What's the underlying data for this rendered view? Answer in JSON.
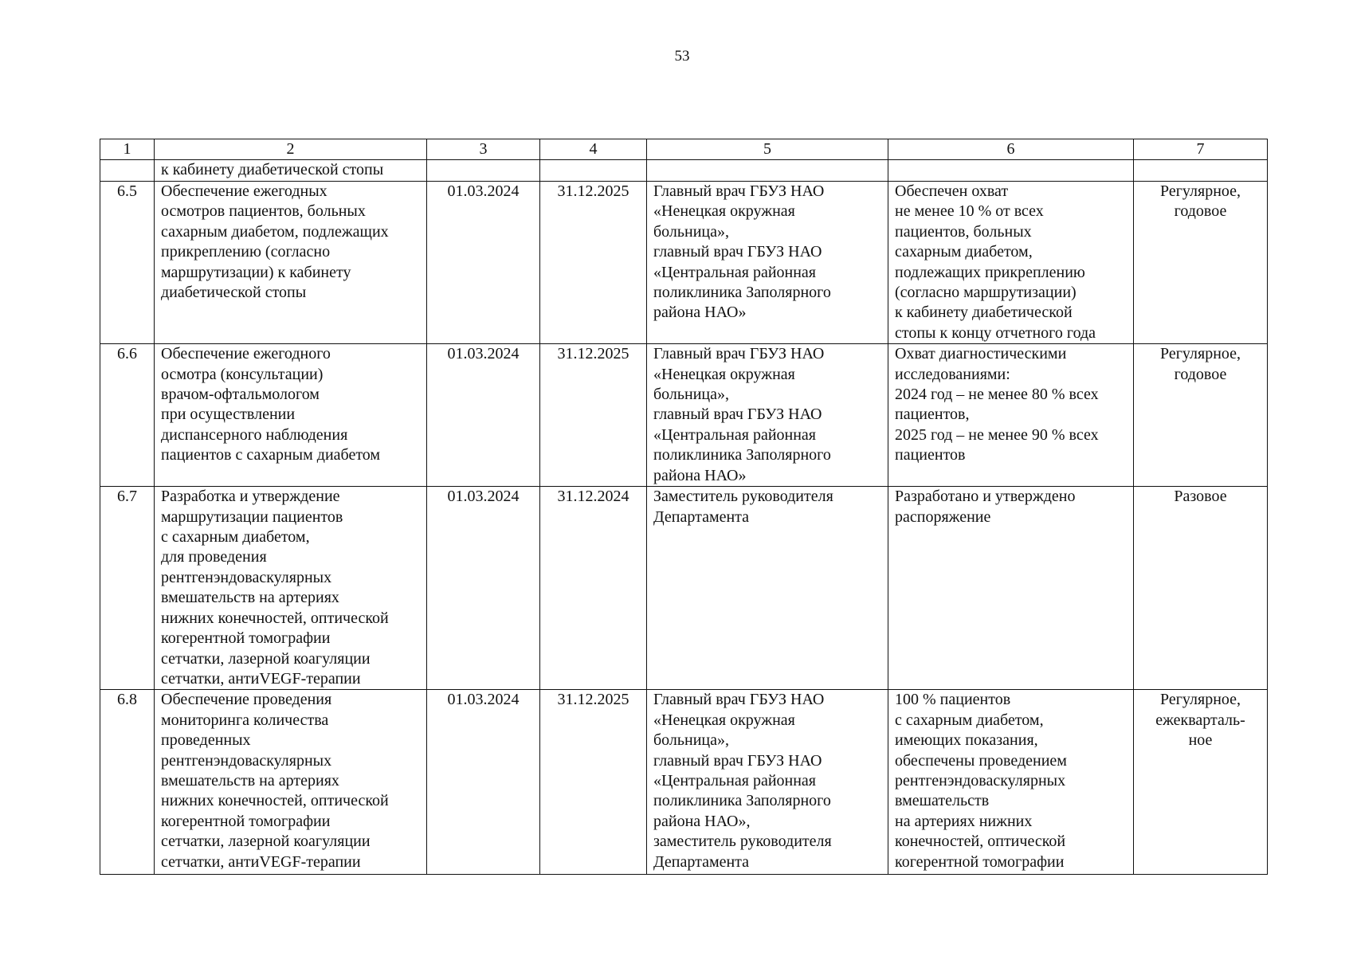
{
  "page_number": "53",
  "table": {
    "headers": [
      "1",
      "2",
      "3",
      "4",
      "5",
      "6",
      "7"
    ],
    "continuation_row": [
      "",
      "к кабинету диабетической стопы",
      "",
      "",
      "",
      "",
      ""
    ],
    "rows": [
      {
        "num": "6.5",
        "activity": "Обеспечение ежегодных\nосмотров пациентов, больных\nсахарным диабетом, подлежащих\nприкреплению (согласно\nмаршрутизации) к кабинету\nдиабетической стопы",
        "start": "01.03.2024",
        "end": "31.12.2025",
        "responsible": "Главный врач ГБУЗ НАО\n«Ненецкая окружная\nбольница»,\nглавный врач ГБУЗ НАО\n«Центральная районная\nполиклиника Заполярного\nрайона НАО»",
        "result": "Обеспечен охват\nне менее 10 % от всех\nпациентов, больных\nсахарным диабетом,\nподлежащих прикреплению\n(согласно маршрутизации)\nк кабинету диабетической\nстопы к концу отчетного года",
        "type": "Регулярное,\nгодовое"
      },
      {
        "num": "6.6",
        "activity": "Обеспечение ежегодного\nосмотра (консультации)\nврачом-офтальмологом\nпри осуществлении\nдиспансерного наблюдения\nпациентов с сахарным диабетом",
        "start": "01.03.2024",
        "end": "31.12.2025",
        "responsible": "Главный врач ГБУЗ НАО\n«Ненецкая окружная\nбольница»,\nглавный врач ГБУЗ НАО\n«Центральная районная\nполиклиника Заполярного\nрайона НАО»",
        "result": "Охват диагностическими\nисследованиями:\n2024 год – не менее 80 % всех\nпациентов,\n2025 год – не менее 90 % всех\nпациентов",
        "type": "Регулярное,\nгодовое"
      },
      {
        "num": "6.7",
        "activity": "Разработка и утверждение\nмаршрутизации пациентов\nс сахарным диабетом,\nдля проведения\nрентгенэндоваскулярных\nвмешательств на артериях\nнижних конечностей, оптической\nкогерентной томографии\nсетчатки, лазерной коагуляции\nсетчатки, антиVEGF-терапии",
        "start": "01.03.2024",
        "end": "31.12.2024",
        "responsible": "Заместитель руководителя\nДепартамента",
        "result": "Разработано и утверждено\nраспоряжение",
        "type": "Разовое"
      },
      {
        "num": "6.8",
        "activity": "Обеспечение проведения\nмониторинга количества\nпроведенных\nрентгенэндоваскулярных\nвмешательств на артериях\nнижних конечностей, оптической\nкогерентной томографии\nсетчатки, лазерной коагуляции\nсетчатки, антиVEGF-терапии",
        "start": "01.03.2024",
        "end": "31.12.2025",
        "responsible": "Главный врач ГБУЗ НАО\n«Ненецкая окружная\nбольница»,\nглавный врач ГБУЗ НАО\n«Центральная районная\nполиклиника Заполярного\nрайона НАО»,\nзаместитель руководителя\nДепартамента",
        "result": "100 % пациентов\nс сахарным диабетом,\nимеющих показания,\nобеспечены проведением\nрентгенэндоваскулярных\nвмешательств\nна артериях нижних\nконечностей, оптической\nкогерентной томографии",
        "type": "Регулярное,\nежекварталь-\nное"
      }
    ]
  }
}
